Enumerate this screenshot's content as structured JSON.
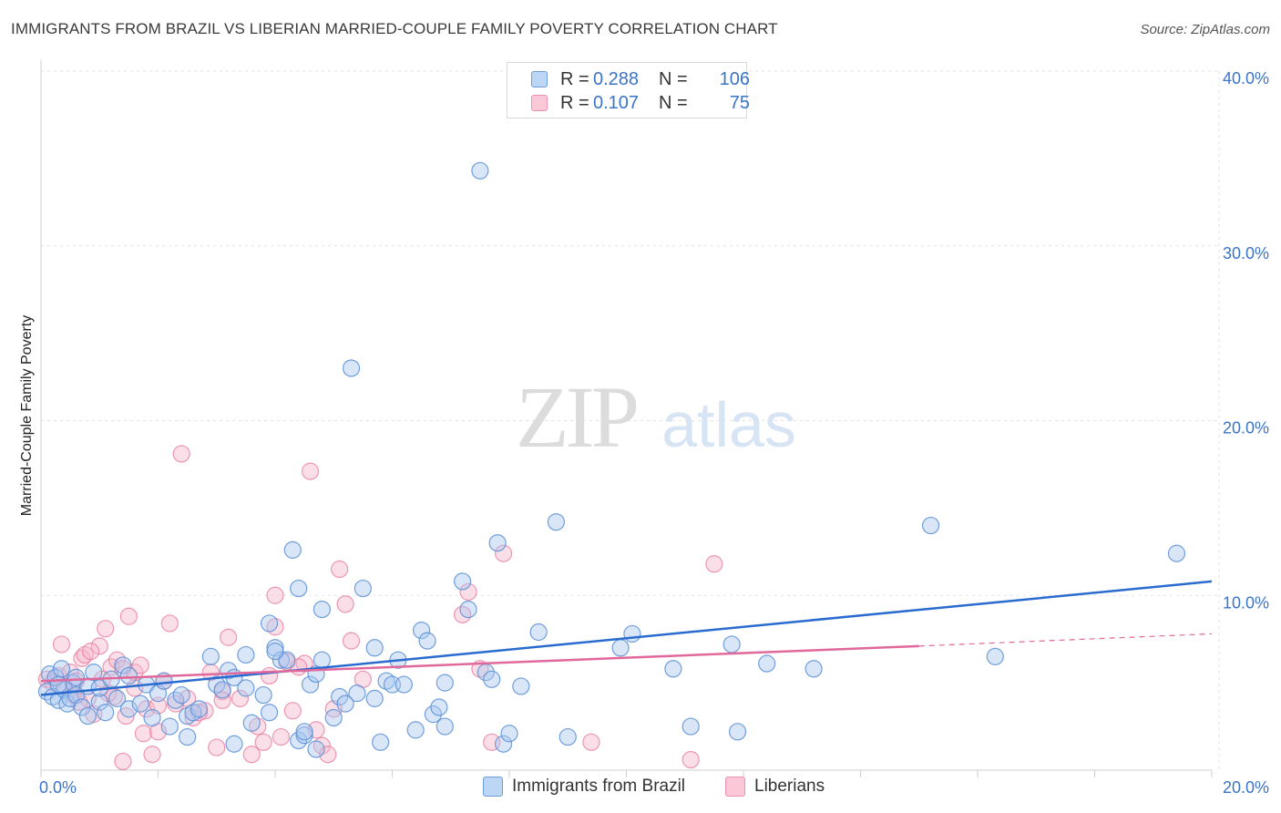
{
  "title": "IMMIGRANTS FROM BRAZIL VS LIBERIAN MARRIED-COUPLE FAMILY POVERTY CORRELATION CHART",
  "source": "Source: ZipAtlas.com",
  "watermark": {
    "zip": "ZIP",
    "atlas": "atlas"
  },
  "legend": {
    "r_label": "R =",
    "n_label": "N =",
    "rows": [
      {
        "name": "Immigrants from Brazil",
        "r": "0.288",
        "n": "106"
      },
      {
        "name": "Liberians",
        "r": "0.107",
        "n": "75"
      }
    ]
  },
  "chart_data": {
    "type": "scatter",
    "title": "IMMIGRANTS FROM BRAZIL VS LIBERIAN MARRIED-COUPLE FAMILY POVERTY CORRELATION CHART",
    "xlabel": "",
    "ylabel": "Married-Couple Family Poverty",
    "xlim": [
      0,
      20
    ],
    "ylim": [
      0,
      40
    ],
    "x_tick_labels": [
      "0.0%",
      "20.0%"
    ],
    "y_tick_labels": [
      "10.0%",
      "20.0%",
      "30.0%",
      "40.0%"
    ],
    "y_ticks": [
      10,
      20,
      30,
      40
    ],
    "grid": true,
    "colors": {
      "brazil_fill": "#a9c8f0",
      "brazil_stroke": "#5b8fd6",
      "brazil_line": "#2a6bd0",
      "liberian_fill": "#f7b8cc",
      "liberian_stroke": "#e87fa0",
      "liberian_line": "#e0689a",
      "axis_text": "#3a74c9"
    },
    "series": [
      {
        "name": "Immigrants from Brazil",
        "trend": {
          "x0": 0,
          "y0": 4.3,
          "x1": 20,
          "y1": 10.8
        },
        "points": [
          [
            0.1,
            4.5
          ],
          [
            0.15,
            5.5
          ],
          [
            0.2,
            4.2
          ],
          [
            0.25,
            5.3
          ],
          [
            0.3,
            4.0
          ],
          [
            0.35,
            5.8
          ],
          [
            0.4,
            4.6
          ],
          [
            0.45,
            3.8
          ],
          [
            0.5,
            4.1
          ],
          [
            0.55,
            5.0
          ],
          [
            0.6,
            4.3
          ],
          [
            0.7,
            3.6
          ],
          [
            0.8,
            4.8
          ],
          [
            0.9,
            5.6
          ],
          [
            1.0,
            3.9
          ],
          [
            1.0,
            4.7
          ],
          [
            1.2,
            5.2
          ],
          [
            1.3,
            4.1
          ],
          [
            1.4,
            6.0
          ],
          [
            1.5,
            3.5
          ],
          [
            1.5,
            5.4
          ],
          [
            1.8,
            4.9
          ],
          [
            1.9,
            3.0
          ],
          [
            2.0,
            4.4
          ],
          [
            2.1,
            5.1
          ],
          [
            2.2,
            2.5
          ],
          [
            2.3,
            4.0
          ],
          [
            2.4,
            4.3
          ],
          [
            2.5,
            3.1
          ],
          [
            2.6,
            3.3
          ],
          [
            2.9,
            6.5
          ],
          [
            3.0,
            4.9
          ],
          [
            3.1,
            4.6
          ],
          [
            3.2,
            5.7
          ],
          [
            3.3,
            5.3
          ],
          [
            3.5,
            4.7
          ],
          [
            3.5,
            6.6
          ],
          [
            3.6,
            2.7
          ],
          [
            3.8,
            4.3
          ],
          [
            3.9,
            3.3
          ],
          [
            3.9,
            8.4
          ],
          [
            4.0,
            7.0
          ],
          [
            4.1,
            6.3
          ],
          [
            4.2,
            6.3
          ],
          [
            4.3,
            12.6
          ],
          [
            4.4,
            10.4
          ],
          [
            4.4,
            1.7
          ],
          [
            4.5,
            2.0
          ],
          [
            4.6,
            4.9
          ],
          [
            4.7,
            1.2
          ],
          [
            4.7,
            5.5
          ],
          [
            4.8,
            6.3
          ],
          [
            4.8,
            9.2
          ],
          [
            5.0,
            3.0
          ],
          [
            5.1,
            4.2
          ],
          [
            5.3,
            23.0
          ],
          [
            5.4,
            4.4
          ],
          [
            5.5,
            10.4
          ],
          [
            5.7,
            7.0
          ],
          [
            5.7,
            4.1
          ],
          [
            5.8,
            1.6
          ],
          [
            5.9,
            5.1
          ],
          [
            6.0,
            4.9
          ],
          [
            6.1,
            6.3
          ],
          [
            6.2,
            4.9
          ],
          [
            6.4,
            2.3
          ],
          [
            6.5,
            8.0
          ],
          [
            6.6,
            7.4
          ],
          [
            6.7,
            3.2
          ],
          [
            6.9,
            2.5
          ],
          [
            6.9,
            5.0
          ],
          [
            7.2,
            10.8
          ],
          [
            7.3,
            9.2
          ],
          [
            7.5,
            34.3
          ],
          [
            7.6,
            5.6
          ],
          [
            7.7,
            5.2
          ],
          [
            7.8,
            13.0
          ],
          [
            7.9,
            1.5
          ],
          [
            8.2,
            4.8
          ],
          [
            8.5,
            7.9
          ],
          [
            8.8,
            14.2
          ],
          [
            9.0,
            1.9
          ],
          [
            9.9,
            7.0
          ],
          [
            10.1,
            7.8
          ],
          [
            10.8,
            5.8
          ],
          [
            11.1,
            2.5
          ],
          [
            11.8,
            7.2
          ],
          [
            11.9,
            2.2
          ],
          [
            12.4,
            6.1
          ],
          [
            13.2,
            5.8
          ],
          [
            15.2,
            14.0
          ],
          [
            16.3,
            6.5
          ],
          [
            19.4,
            12.4
          ],
          [
            0.3,
            4.9
          ],
          [
            0.6,
            5.3
          ],
          [
            1.1,
            3.3
          ],
          [
            1.7,
            3.8
          ],
          [
            2.7,
            3.5
          ],
          [
            3.3,
            1.5
          ],
          [
            4.0,
            6.8
          ],
          [
            4.5,
            2.2
          ],
          [
            5.2,
            3.8
          ],
          [
            6.8,
            3.6
          ],
          [
            8.0,
            2.1
          ],
          [
            0.8,
            3.1
          ],
          [
            2.5,
            1.9
          ]
        ]
      },
      {
        "name": "Liberians",
        "trend": {
          "x0": 0,
          "y0": 5.1,
          "x1": 15.0,
          "y1": 7.1,
          "dash_to_x": 20,
          "dash_to_y": 7.8
        },
        "points": [
          [
            0.1,
            5.2
          ],
          [
            0.2,
            5.0
          ],
          [
            0.3,
            5.4
          ],
          [
            0.35,
            7.2
          ],
          [
            0.4,
            4.8
          ],
          [
            0.5,
            5.6
          ],
          [
            0.55,
            4.3
          ],
          [
            0.6,
            5.1
          ],
          [
            0.7,
            6.4
          ],
          [
            0.75,
            6.6
          ],
          [
            0.8,
            4.1
          ],
          [
            0.9,
            3.2
          ],
          [
            1.0,
            7.1
          ],
          [
            1.05,
            5.2
          ],
          [
            1.1,
            8.1
          ],
          [
            1.2,
            5.9
          ],
          [
            1.25,
            4.2
          ],
          [
            1.3,
            6.3
          ],
          [
            1.4,
            5.8
          ],
          [
            1.45,
            3.1
          ],
          [
            1.5,
            8.8
          ],
          [
            1.6,
            5.6
          ],
          [
            1.7,
            6.0
          ],
          [
            1.75,
            2.1
          ],
          [
            1.8,
            3.5
          ],
          [
            1.9,
            0.9
          ],
          [
            2.0,
            2.2
          ],
          [
            2.1,
            5.1
          ],
          [
            2.2,
            8.4
          ],
          [
            2.3,
            3.8
          ],
          [
            2.4,
            18.1
          ],
          [
            2.5,
            4.1
          ],
          [
            2.6,
            3.0
          ],
          [
            2.8,
            3.4
          ],
          [
            2.9,
            5.6
          ],
          [
            3.0,
            1.3
          ],
          [
            3.1,
            4.5
          ],
          [
            3.2,
            7.6
          ],
          [
            3.4,
            4.1
          ],
          [
            3.6,
            0.9
          ],
          [
            3.7,
            2.5
          ],
          [
            3.8,
            1.6
          ],
          [
            3.9,
            5.4
          ],
          [
            4.0,
            8.2
          ],
          [
            4.0,
            10.0
          ],
          [
            4.2,
            6.2
          ],
          [
            4.3,
            3.4
          ],
          [
            4.5,
            6.1
          ],
          [
            4.7,
            2.3
          ],
          [
            4.6,
            17.1
          ],
          [
            4.8,
            1.4
          ],
          [
            4.9,
            0.9
          ],
          [
            5.0,
            3.5
          ],
          [
            5.1,
            11.5
          ],
          [
            5.2,
            9.5
          ],
          [
            5.3,
            7.4
          ],
          [
            5.5,
            5.2
          ],
          [
            7.2,
            8.9
          ],
          [
            7.3,
            10.2
          ],
          [
            7.5,
            5.8
          ],
          [
            7.7,
            1.6
          ],
          [
            7.9,
            12.4
          ],
          [
            9.4,
            1.6
          ],
          [
            11.1,
            0.6
          ],
          [
            11.5,
            11.8
          ],
          [
            1.4,
            0.5
          ],
          [
            0.85,
            6.8
          ],
          [
            1.15,
            4.4
          ],
          [
            2.7,
            3.3
          ],
          [
            3.1,
            4.0
          ],
          [
            4.1,
            1.9
          ],
          [
            4.4,
            5.9
          ],
          [
            1.6,
            4.7
          ],
          [
            0.65,
            3.9
          ],
          [
            2.0,
            3.7
          ]
        ]
      }
    ]
  }
}
